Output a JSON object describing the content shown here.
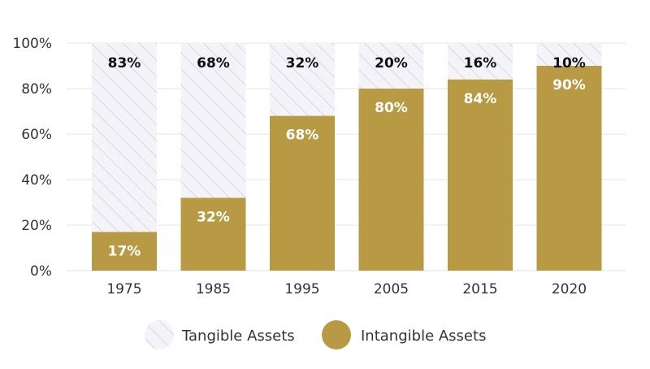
{
  "chart_data": {
    "type": "bar",
    "stacked": true,
    "categories": [
      "1975",
      "1985",
      "1995",
      "2005",
      "2015",
      "2020"
    ],
    "series": [
      {
        "name": "Intangible Assets",
        "values": [
          17,
          32,
          68,
          80,
          84,
          90
        ],
        "labels": [
          "17%",
          "32%",
          "68%",
          "80%",
          "84%",
          "90%"
        ],
        "color": "#b99a44",
        "label_color": "#ffffff"
      },
      {
        "name": "Tangible Assets",
        "values": [
          83,
          68,
          32,
          20,
          16,
          10
        ],
        "labels": [
          "83%",
          "68%",
          "32%",
          "20%",
          "16%",
          "10%"
        ],
        "color": "#f4f3f8",
        "hatch_color": "#c9c7d8",
        "label_color": "#111111"
      }
    ],
    "yticks": [
      "0%",
      "20%",
      "40%",
      "60%",
      "80%",
      "100%"
    ],
    "ylim": [
      0,
      100
    ],
    "grid": true,
    "legend": {
      "position": "bottom-center",
      "items": [
        "Tangible Assets",
        "Intangible Assets"
      ]
    },
    "title": "",
    "xlabel": "",
    "ylabel": ""
  }
}
